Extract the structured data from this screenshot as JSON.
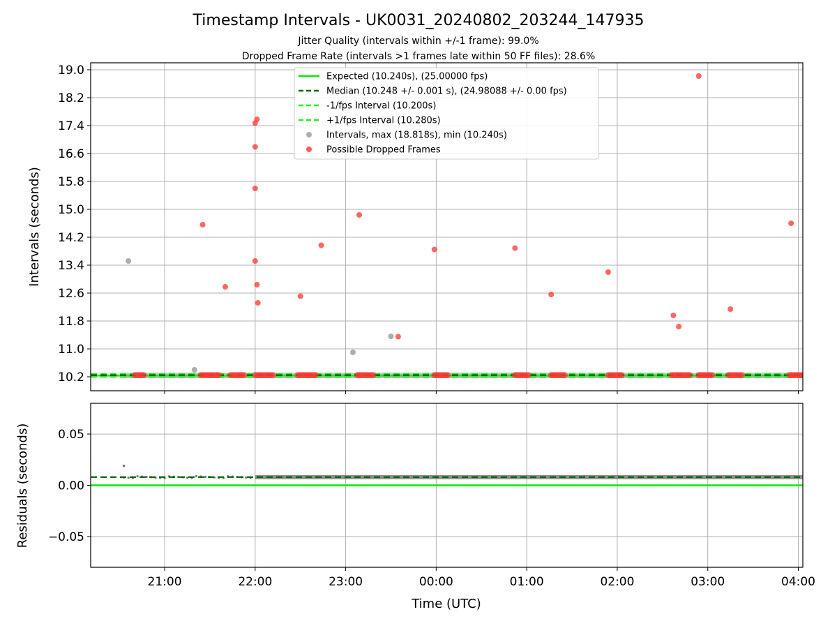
{
  "title": "Timestamp Intervals - UK0031_20240802_203244_147935",
  "subtitle_line1": "Jitter Quality (intervals within +/-1 frame): 99.0%",
  "subtitle_line2": "Dropped Frame Rate (intervals >1 frames late within 50 FF files): 28.6%",
  "colors": {
    "expected": "#00ee00",
    "median": "#006400",
    "fps_band": "#22ee22",
    "intervals": "#999999",
    "dropped": "#ff3333",
    "residuals": "#777777"
  },
  "chart_data": [
    {
      "type": "scatter",
      "ylabel": "Intervals (seconds)",
      "xlim_hours": [
        20.183,
        28.05
      ],
      "ylim": [
        9.8,
        19.2
      ],
      "y_ticks": [
        10.2,
        11.0,
        11.8,
        12.6,
        13.4,
        14.2,
        15.0,
        15.8,
        16.6,
        17.4,
        18.2,
        19.0
      ],
      "x_ticks_hours": [
        21,
        22,
        23,
        24,
        25,
        26,
        27,
        28
      ],
      "grid": true,
      "legend_placement": "upper center",
      "legend": [
        {
          "label": "Expected (10.240s), (25.00000 fps)",
          "style": "solid",
          "color_key": "expected"
        },
        {
          "label": "Median (10.248 +/- 0.001 s), (24.98088 +/- 0.00 fps)",
          "style": "dashed",
          "color_key": "median"
        },
        {
          "label": "-1/fps Interval (10.200s)",
          "style": "dashed",
          "color_key": "fps_band"
        },
        {
          "label": "+1/fps Interval (10.280s)",
          "style": "dashed",
          "color_key": "fps_band"
        },
        {
          "label": "Intervals, max (18.818s), min (10.240s)",
          "style": "marker",
          "color_key": "intervals"
        },
        {
          "label": "Possible Dropped Frames",
          "style": "marker",
          "color_key": "dropped"
        }
      ],
      "lines": {
        "expected": 10.24,
        "median": 10.248,
        "minus_fps": 10.2,
        "plus_fps": 10.28
      },
      "intervals_outliers": [
        {
          "x": 20.6,
          "y": 13.52
        },
        {
          "x": 21.33,
          "y": 10.4
        },
        {
          "x": 23.08,
          "y": 10.9
        },
        {
          "x": 23.5,
          "y": 11.36
        }
      ],
      "dropped_outliers": [
        {
          "x": 21.42,
          "y": 14.56
        },
        {
          "x": 21.67,
          "y": 12.78
        },
        {
          "x": 22.0,
          "y": 17.47
        },
        {
          "x": 22.02,
          "y": 17.58
        },
        {
          "x": 22.0,
          "y": 16.79
        },
        {
          "x": 22.0,
          "y": 15.6
        },
        {
          "x": 22.0,
          "y": 13.52
        },
        {
          "x": 22.02,
          "y": 12.84
        },
        {
          "x": 22.03,
          "y": 12.32
        },
        {
          "x": 22.5,
          "y": 12.51
        },
        {
          "x": 22.73,
          "y": 13.97
        },
        {
          "x": 23.15,
          "y": 14.84
        },
        {
          "x": 23.58,
          "y": 11.35
        },
        {
          "x": 23.98,
          "y": 13.85
        },
        {
          "x": 24.87,
          "y": 13.89
        },
        {
          "x": 25.27,
          "y": 12.56
        },
        {
          "x": 25.9,
          "y": 13.2
        },
        {
          "x": 26.62,
          "y": 11.96
        },
        {
          "x": 26.68,
          "y": 11.64
        },
        {
          "x": 26.9,
          "y": 18.82
        },
        {
          "x": 27.25,
          "y": 12.14
        },
        {
          "x": 27.92,
          "y": 14.6
        }
      ],
      "dropped_clusters_hours": [
        [
          20.67,
          20.79
        ],
        [
          21.4,
          21.6
        ],
        [
          21.73,
          21.9
        ],
        [
          22.0,
          22.2
        ],
        [
          22.47,
          22.67
        ],
        [
          23.13,
          23.31
        ],
        [
          23.98,
          24.15
        ],
        [
          24.87,
          25.02
        ],
        [
          25.27,
          25.43
        ],
        [
          25.9,
          26.07
        ],
        [
          26.6,
          26.8
        ],
        [
          26.9,
          27.07
        ],
        [
          27.23,
          27.4
        ],
        [
          27.9,
          28.05
        ]
      ]
    },
    {
      "type": "scatter",
      "xlabel": "Time (UTC)",
      "ylabel": "Residuals (seconds)",
      "xlim_hours": [
        20.183,
        28.05
      ],
      "ylim": [
        -0.08,
        0.08
      ],
      "y_ticks": [
        0.05,
        0.0,
        -0.05
      ],
      "y_tick_labels": [
        "0.05",
        "0.00",
        "−0.05"
      ],
      "x_ticks_hours": [
        21,
        22,
        23,
        24,
        25,
        26,
        27,
        28
      ],
      "x_tick_labels": [
        "21:00",
        "22:00",
        "23:00",
        "00:00",
        "01:00",
        "02:00",
        "03:00",
        "04:00"
      ],
      "grid": true,
      "lines": {
        "zero": 0.0,
        "median_residual": 0.008
      },
      "residual_band": {
        "center": 0.008,
        "spread": 0.002,
        "start_hours": 20.55,
        "dense_start_hours": 22.0,
        "end_hours": 28.05
      },
      "residual_outliers": [
        {
          "x": 20.55,
          "y": 0.019
        }
      ]
    }
  ]
}
